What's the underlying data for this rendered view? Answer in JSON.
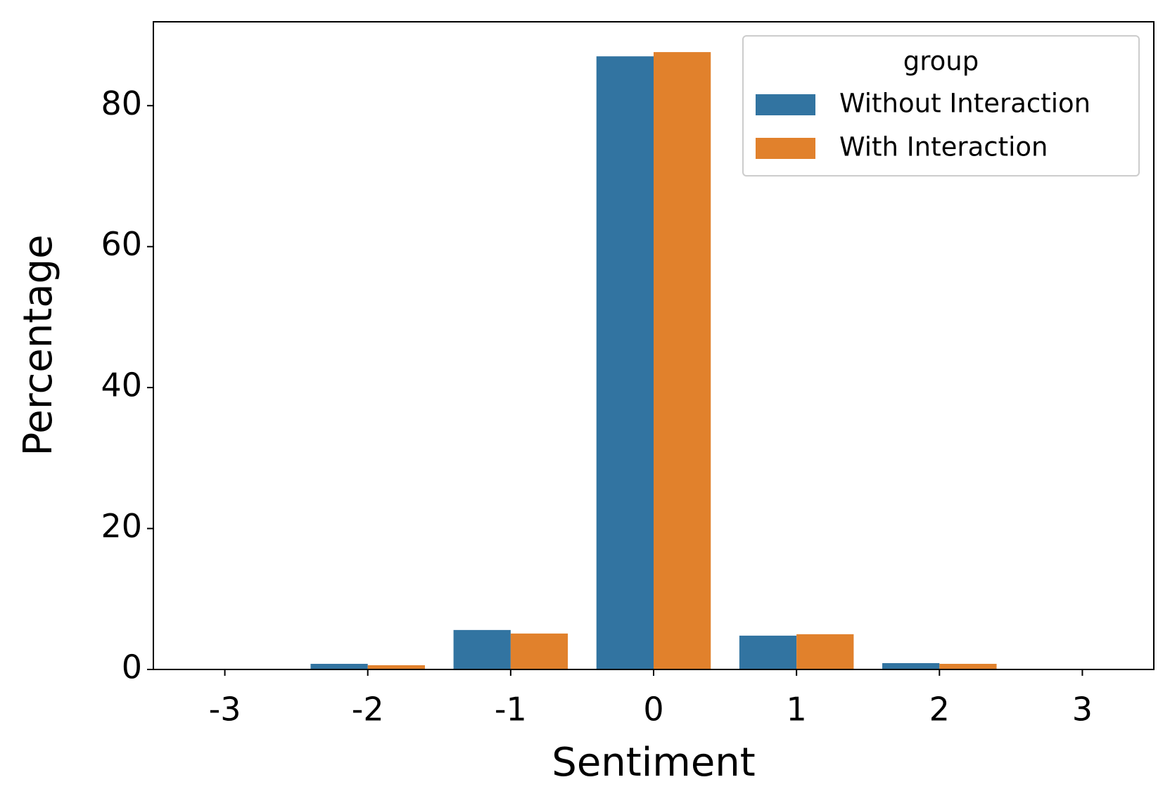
{
  "chart_data": {
    "type": "bar",
    "x_label": "Sentiment",
    "y_label": "Percentage",
    "categories": [
      "-3",
      "-2",
      "-1",
      "0",
      "1",
      "2",
      "3"
    ],
    "legend_title": "group",
    "legend_position": "upper right",
    "series": [
      {
        "name": "Without Interaction",
        "color": "#3274a1",
        "values": [
          0,
          0.8,
          5.6,
          87.0,
          4.8,
          0.9,
          0
        ]
      },
      {
        "name": "With Interaction",
        "color": "#e1812c",
        "values": [
          0,
          0.6,
          5.1,
          87.6,
          5.0,
          0.8,
          0
        ]
      }
    ],
    "ylim": [
      0,
      91.9
    ],
    "yticks": [
      0,
      20,
      40,
      60,
      80
    ]
  }
}
